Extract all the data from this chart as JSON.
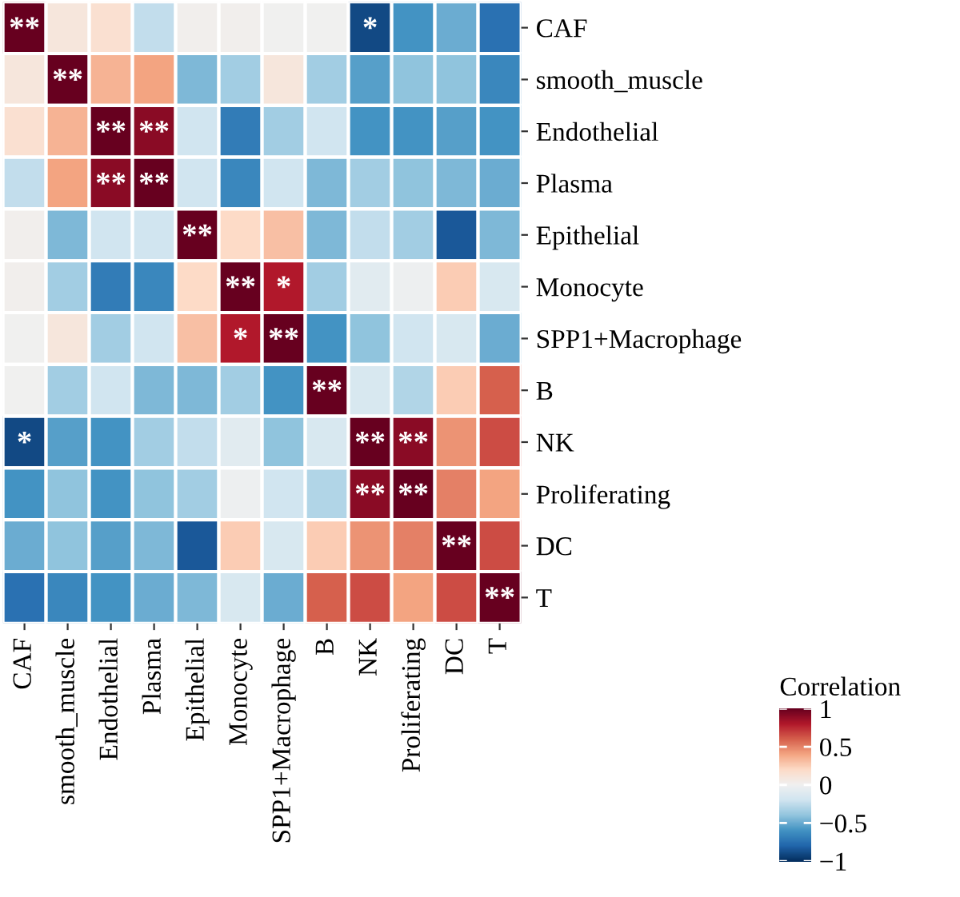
{
  "chart_data": {
    "type": "heatmap",
    "categories": [
      "CAF",
      "smooth_muscle",
      "Endothelial",
      "Plasma",
      "Epithelial",
      "Monocyte",
      "SPP1+Macrophage",
      "B",
      "NK",
      "Proliferating",
      "DC",
      "T"
    ],
    "y_categories": [
      "CAF",
      "smooth_muscle",
      "Endothelial",
      "Plasma",
      "Epithelial",
      "Monocyte",
      "SPP1+Macrophage",
      "B",
      "NK",
      "Proliferating",
      "DC",
      "T"
    ],
    "cells": [
      [
        1,
        0.1,
        0.15,
        -0.25,
        0.02,
        0.02,
        0.0,
        0.0,
        -0.9,
        -0.6,
        -0.5,
        -0.75
      ],
      [
        0.1,
        1,
        0.35,
        0.4,
        -0.45,
        -0.35,
        0.1,
        -0.35,
        -0.55,
        -0.4,
        -0.4,
        -0.65
      ],
      [
        0.15,
        0.35,
        1,
        0.9,
        -0.2,
        -0.7,
        -0.35,
        -0.2,
        -0.6,
        -0.6,
        -0.55,
        -0.6
      ],
      [
        -0.25,
        0.4,
        0.9,
        1,
        -0.2,
        -0.65,
        -0.2,
        -0.45,
        -0.35,
        -0.4,
        -0.45,
        -0.5
      ],
      [
        0.02,
        -0.45,
        -0.2,
        -0.2,
        1,
        0.2,
        0.3,
        -0.45,
        -0.25,
        -0.35,
        -0.85,
        -0.45
      ],
      [
        0.02,
        -0.35,
        -0.7,
        -0.65,
        0.2,
        1,
        0.8,
        -0.35,
        -0.1,
        -0.02,
        0.25,
        -0.15
      ],
      [
        0.0,
        0.1,
        -0.35,
        -0.2,
        0.3,
        0.8,
        1,
        -0.6,
        -0.4,
        -0.2,
        -0.15,
        -0.5
      ],
      [
        0.0,
        -0.35,
        -0.2,
        -0.45,
        -0.45,
        -0.35,
        -0.6,
        1,
        -0.15,
        -0.3,
        0.25,
        0.6
      ],
      [
        -0.9,
        -0.55,
        -0.6,
        -0.35,
        -0.25,
        -0.1,
        -0.4,
        -0.15,
        1,
        0.9,
        0.45,
        0.65
      ],
      [
        -0.6,
        -0.4,
        -0.6,
        -0.4,
        -0.35,
        -0.02,
        -0.2,
        -0.3,
        0.9,
        1,
        0.5,
        0.4
      ],
      [
        -0.5,
        -0.4,
        -0.55,
        -0.45,
        -0.85,
        0.25,
        -0.15,
        0.25,
        0.45,
        0.5,
        1,
        0.65
      ],
      [
        -0.75,
        -0.65,
        -0.6,
        -0.5,
        -0.45,
        -0.15,
        -0.5,
        0.6,
        0.65,
        0.4,
        0.65,
        1
      ]
    ],
    "cell_labels": [
      [
        "**",
        null,
        null,
        null,
        null,
        null,
        null,
        null,
        "*",
        null,
        null,
        null
      ],
      [
        null,
        "**",
        null,
        null,
        null,
        null,
        null,
        null,
        null,
        null,
        null,
        null
      ],
      [
        null,
        null,
        "**",
        "**",
        null,
        null,
        null,
        null,
        null,
        null,
        null,
        null
      ],
      [
        null,
        null,
        "**",
        "**",
        null,
        null,
        null,
        null,
        null,
        null,
        null,
        null
      ],
      [
        null,
        null,
        null,
        null,
        "**",
        null,
        null,
        null,
        null,
        null,
        null,
        null
      ],
      [
        null,
        null,
        null,
        null,
        null,
        "**",
        "*",
        null,
        null,
        null,
        null,
        null
      ],
      [
        null,
        null,
        null,
        null,
        null,
        "*",
        "**",
        null,
        null,
        null,
        null,
        null
      ],
      [
        null,
        null,
        null,
        null,
        null,
        null,
        null,
        "**",
        null,
        null,
        null,
        null
      ],
      [
        "*",
        null,
        null,
        null,
        null,
        null,
        null,
        null,
        "**",
        "**",
        null,
        null
      ],
      [
        null,
        null,
        null,
        null,
        null,
        null,
        null,
        null,
        "**",
        "**",
        null,
        null
      ],
      [
        null,
        null,
        null,
        null,
        null,
        null,
        null,
        null,
        null,
        null,
        "**",
        null
      ],
      [
        null,
        null,
        null,
        null,
        null,
        null,
        null,
        null,
        null,
        null,
        null,
        "**"
      ]
    ],
    "clabel": "Correlation",
    "clim": [
      -1,
      1
    ],
    "cticks": [
      {
        "value": -1,
        "label": "−1"
      },
      {
        "value": -0.5,
        "label": "−0.5"
      },
      0,
      0.5,
      1
    ]
  }
}
